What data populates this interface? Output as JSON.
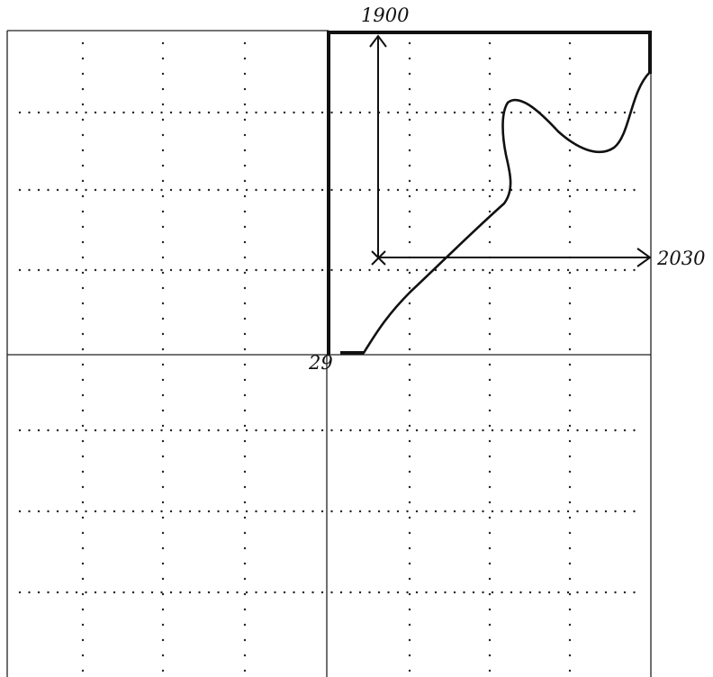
{
  "labels": {
    "top": "1900",
    "right": "2030",
    "origin": "29"
  },
  "colors": {
    "ink": "#111111",
    "grid": "#222222",
    "background": "#ffffff"
  }
}
